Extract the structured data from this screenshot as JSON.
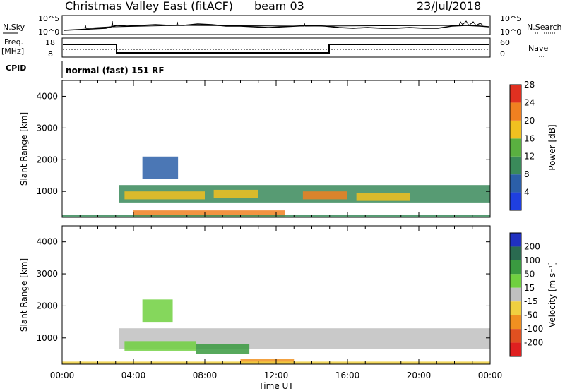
{
  "header": {
    "title": "Christmas Valley East (fitACF)",
    "beam": "beam 03",
    "date": "23/Jul/2018"
  },
  "params": {
    "nsky_label": "N.Sky",
    "nsky_ticks": [
      "10^5",
      "10^0"
    ],
    "nsearch_label": "N.Search",
    "nsearch_ticks": [
      "10^5",
      "10^0"
    ],
    "freq_label": "Freq.",
    "freq_unit": "[MHz]",
    "freq_ticks": [
      "18",
      "8"
    ],
    "nave_label": "Nave",
    "nave_ticks": [
      "60",
      "0"
    ],
    "cpid_label": "CPID",
    "cpid_value": "normal (fast) 151 RF"
  },
  "chart_data": [
    {
      "type": "heatmap",
      "quantity": "Power",
      "ylabel": "Slant Range [km]",
      "ylim": [
        180,
        4500
      ],
      "yticks": [
        1000,
        2000,
        3000,
        4000
      ],
      "xlim_hours": [
        0,
        24
      ],
      "colorbar": {
        "label": "Power [dB]",
        "ticks": [
          4,
          8,
          12,
          16,
          20,
          24,
          28
        ],
        "colors": [
          "#1f3fe0",
          "#2b5fa8",
          "#3a8a5a",
          "#5ab040",
          "#f0c020",
          "#f08020",
          "#e03020"
        ]
      },
      "bands": [
        {
          "start": 3.2,
          "end": 24.0,
          "rmin": 650,
          "rmax": 1200,
          "level": 14
        },
        {
          "start": 3.5,
          "end": 8.0,
          "rmin": 750,
          "rmax": 1000,
          "level": 22
        },
        {
          "start": 8.5,
          "end": 11.0,
          "rmin": 800,
          "rmax": 1050,
          "level": 20
        },
        {
          "start": 13.5,
          "end": 16.0,
          "rmin": 750,
          "rmax": 1000,
          "level": 24
        },
        {
          "start": 16.5,
          "end": 19.5,
          "rmin": 700,
          "rmax": 950,
          "level": 20
        },
        {
          "start": 4.0,
          "end": 12.5,
          "rmin": 200,
          "rmax": 400,
          "level": 26
        },
        {
          "start": 4.5,
          "end": 6.5,
          "rmin": 1400,
          "rmax": 2100,
          "level": 10
        },
        {
          "start": 0.0,
          "end": 24.0,
          "rmin": 180,
          "rmax": 260,
          "level": 12
        }
      ]
    },
    {
      "type": "heatmap",
      "quantity": "Velocity",
      "ylabel": "Slant Range [km]",
      "xlabel": "Time UT",
      "ylim": [
        180,
        4500
      ],
      "yticks": [
        1000,
        2000,
        3000,
        4000
      ],
      "xlim_hours": [
        0,
        24
      ],
      "xticks": [
        "00:00",
        "04:00",
        "08:00",
        "12:00",
        "16:00",
        "20:00",
        "00:00"
      ],
      "colorbar": {
        "label": "Velocity [m s⁻¹]",
        "ticks": [
          200,
          100,
          50,
          15,
          -15,
          -50,
          -100,
          -200
        ],
        "colors": [
          "#2030c0",
          "#2a6a50",
          "#3a9a40",
          "#70d040",
          "#c0c0c0",
          "#f0d040",
          "#f09020",
          "#e05020",
          "#e02020"
        ]
      },
      "bands": [
        {
          "start": 3.2,
          "end": 24.0,
          "rmin": 650,
          "rmax": 1300,
          "level": 0
        },
        {
          "start": 3.5,
          "end": 7.5,
          "rmin": 600,
          "rmax": 900,
          "level": 30
        },
        {
          "start": 7.5,
          "end": 10.5,
          "rmin": 500,
          "rmax": 800,
          "level": 60
        },
        {
          "start": 10.0,
          "end": 13.0,
          "rmin": 200,
          "rmax": 350,
          "level": -60
        },
        {
          "start": 4.5,
          "end": 6.2,
          "rmin": 1500,
          "rmax": 2200,
          "level": 40
        },
        {
          "start": 0.0,
          "end": 24.0,
          "rmin": 180,
          "rmax": 260,
          "level": -20
        }
      ]
    }
  ]
}
